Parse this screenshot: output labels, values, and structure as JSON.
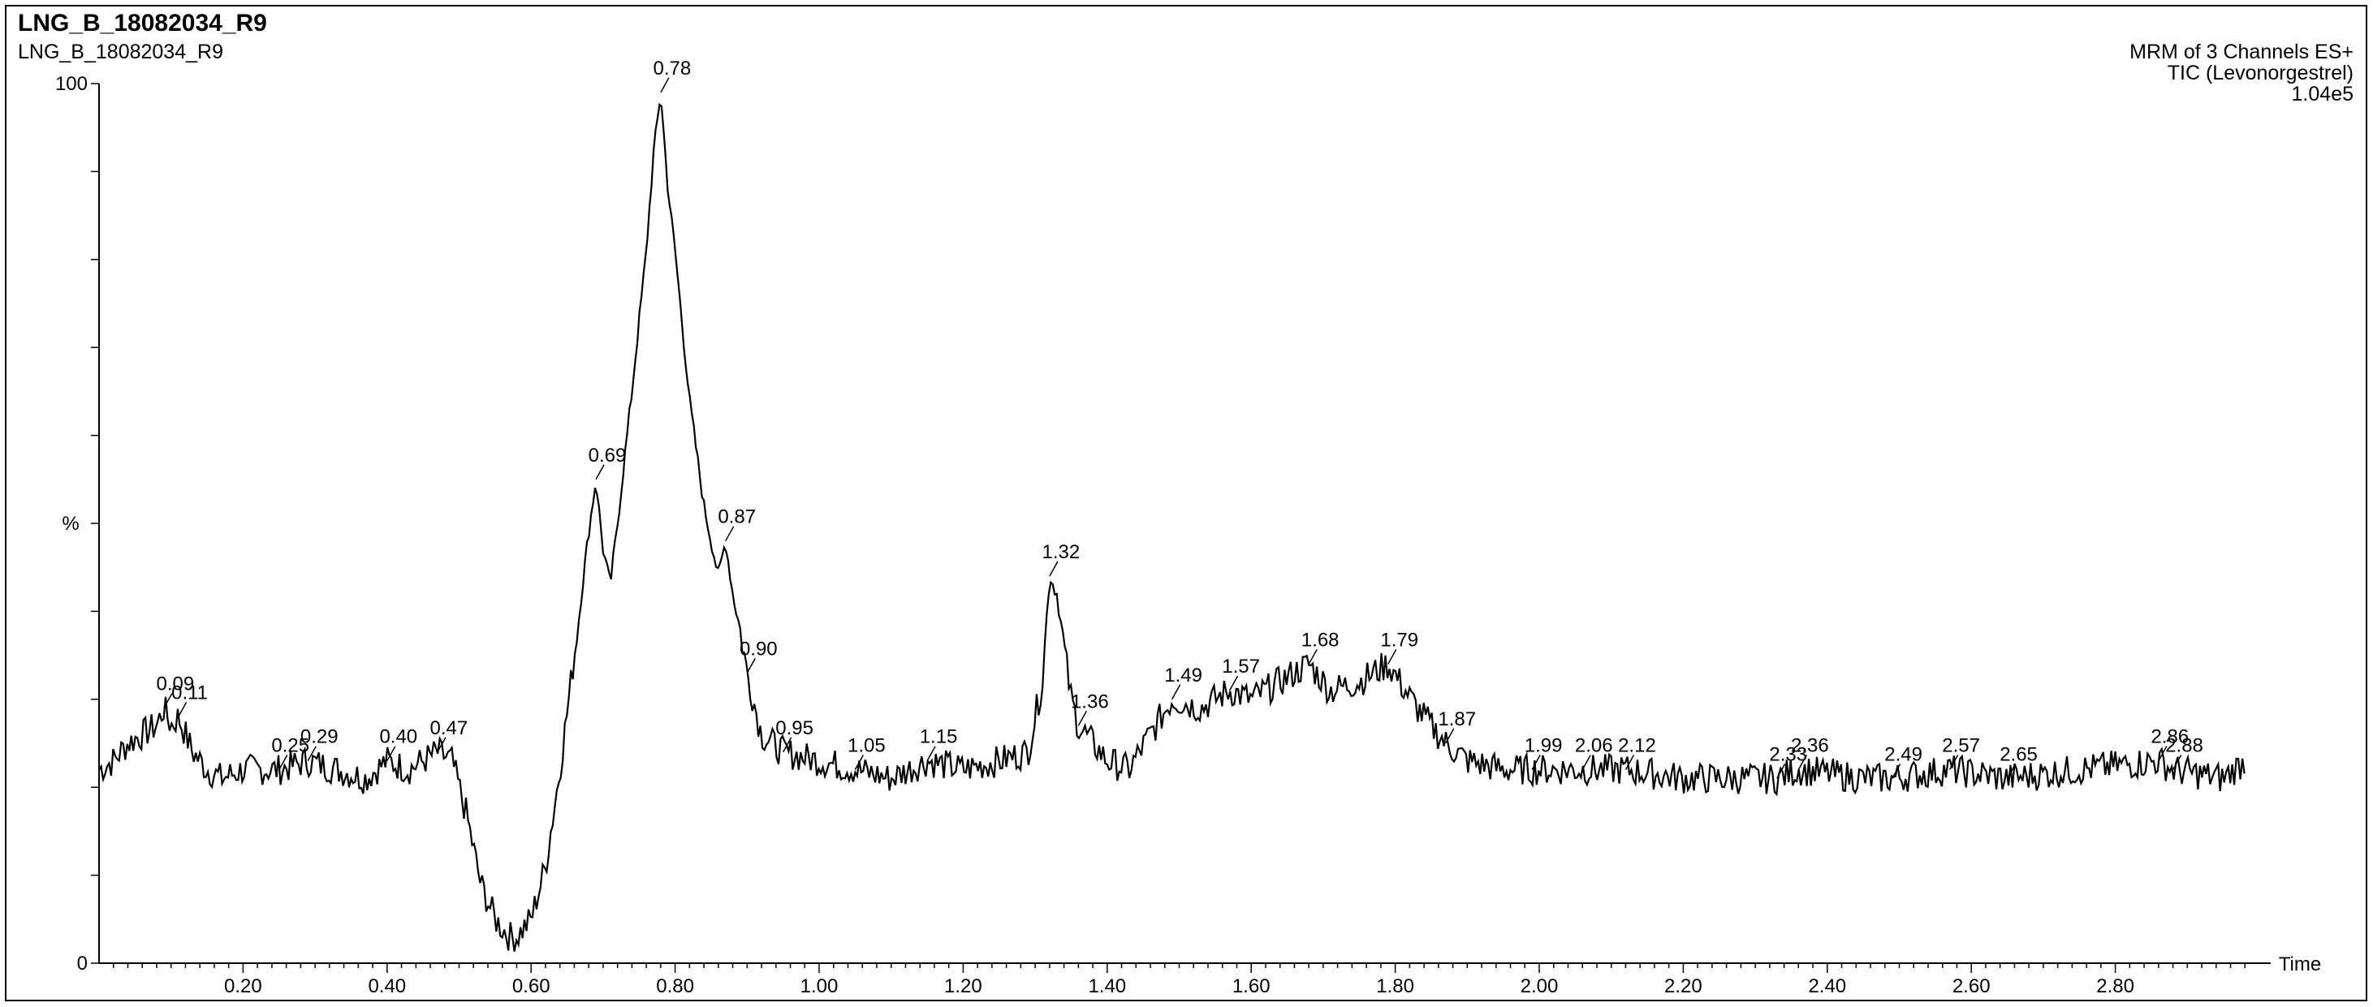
{
  "header": {
    "title": "LNG_B_18082034_R9",
    "subtitle": "LNG_B_18082034_R9",
    "channel_info": "MRM of 3 Channels ES+",
    "trace_label": "TIC (Levonorgestrel)",
    "intensity": "1.04e5"
  },
  "chart_data": {
    "type": "line",
    "xlabel": "Time",
    "ylabel": "%",
    "xlim": [
      0.0,
      3.0
    ],
    "ylim": [
      0,
      100
    ],
    "x_ticks": [
      "0.20",
      "0.40",
      "0.60",
      "0.80",
      "1.00",
      "1.20",
      "1.40",
      "1.60",
      "1.80",
      "2.00",
      "2.20",
      "2.40",
      "2.60",
      "2.80"
    ],
    "y_ticks": [
      "0",
      "100"
    ],
    "series": [
      {
        "x": [
          0.0,
          0.02,
          0.04,
          0.06,
          0.08,
          0.09,
          0.1,
          0.11,
          0.13,
          0.15,
          0.17,
          0.2,
          0.25,
          0.29,
          0.33,
          0.37,
          0.4,
          0.43,
          0.47,
          0.49,
          0.51,
          0.53,
          0.55,
          0.57,
          0.58,
          0.6,
          0.62,
          0.64,
          0.66,
          0.68,
          0.69,
          0.7,
          0.71,
          0.72,
          0.74,
          0.76,
          0.77,
          0.78,
          0.79,
          0.8,
          0.82,
          0.84,
          0.86,
          0.87,
          0.88,
          0.89,
          0.9,
          0.92,
          0.95,
          1.0,
          1.05,
          1.1,
          1.15,
          1.2,
          1.25,
          1.29,
          1.31,
          1.32,
          1.33,
          1.34,
          1.35,
          1.36,
          1.38,
          1.4,
          1.43,
          1.46,
          1.49,
          1.53,
          1.57,
          1.6,
          1.64,
          1.68,
          1.71,
          1.75,
          1.79,
          1.83,
          1.87,
          1.9,
          1.95,
          1.99,
          2.06,
          2.12,
          2.2,
          2.33,
          2.36,
          2.45,
          2.49,
          2.57,
          2.65,
          2.75,
          2.86,
          2.88,
          2.95,
          2.98
        ],
        "y": [
          22,
          23,
          25,
          26,
          27,
          29,
          27,
          28,
          24,
          22,
          21,
          22,
          22,
          23,
          22,
          21,
          23,
          22,
          24,
          23,
          17,
          9,
          5,
          3,
          3,
          5,
          11,
          22,
          35,
          49,
          55,
          47,
          43,
          50,
          65,
          81,
          92,
          99,
          88,
          81,
          64,
          52,
          44,
          48,
          42,
          38,
          33,
          26,
          24,
          23,
          22,
          21,
          23,
          22,
          23,
          24,
          32,
          44,
          42,
          36,
          30,
          27,
          25,
          23,
          22,
          26,
          30,
          29,
          31,
          30,
          32,
          34,
          31,
          32,
          34,
          29,
          25,
          23,
          22,
          22,
          22,
          22,
          21,
          21,
          22,
          21,
          21,
          22,
          21,
          22,
          23,
          22,
          21,
          23
        ]
      }
    ],
    "peak_labels": [
      {
        "x": 0.09,
        "label": "0.09"
      },
      {
        "x": 0.11,
        "label": "0.11"
      },
      {
        "x": 0.25,
        "label": "0.25"
      },
      {
        "x": 0.29,
        "label": "0.29"
      },
      {
        "x": 0.4,
        "label": "0.40"
      },
      {
        "x": 0.47,
        "label": "0.47"
      },
      {
        "x": 0.69,
        "label": "0.69"
      },
      {
        "x": 0.78,
        "label": "0.78"
      },
      {
        "x": 0.87,
        "label": "0.87"
      },
      {
        "x": 0.9,
        "label": "0.90"
      },
      {
        "x": 0.95,
        "label": "0.95"
      },
      {
        "x": 1.05,
        "label": "1.05"
      },
      {
        "x": 1.15,
        "label": "1.15"
      },
      {
        "x": 1.32,
        "label": "1.32"
      },
      {
        "x": 1.36,
        "label": "1.36"
      },
      {
        "x": 1.49,
        "label": "1.49"
      },
      {
        "x": 1.57,
        "label": "1.57"
      },
      {
        "x": 1.68,
        "label": "1.68"
      },
      {
        "x": 1.79,
        "label": "1.79"
      },
      {
        "x": 1.87,
        "label": "1.87"
      },
      {
        "x": 1.99,
        "label": "1.99"
      },
      {
        "x": 2.06,
        "label": "2.06"
      },
      {
        "x": 2.12,
        "label": "2.12"
      },
      {
        "x": 2.33,
        "label": "2.33"
      },
      {
        "x": 2.36,
        "label": "2.36"
      },
      {
        "x": 2.49,
        "label": "2.49"
      },
      {
        "x": 2.57,
        "label": "2.57"
      },
      {
        "x": 2.65,
        "label": "2.65"
      },
      {
        "x": 2.86,
        "label": "2.86"
      },
      {
        "x": 2.88,
        "label": "2.88"
      }
    ]
  }
}
